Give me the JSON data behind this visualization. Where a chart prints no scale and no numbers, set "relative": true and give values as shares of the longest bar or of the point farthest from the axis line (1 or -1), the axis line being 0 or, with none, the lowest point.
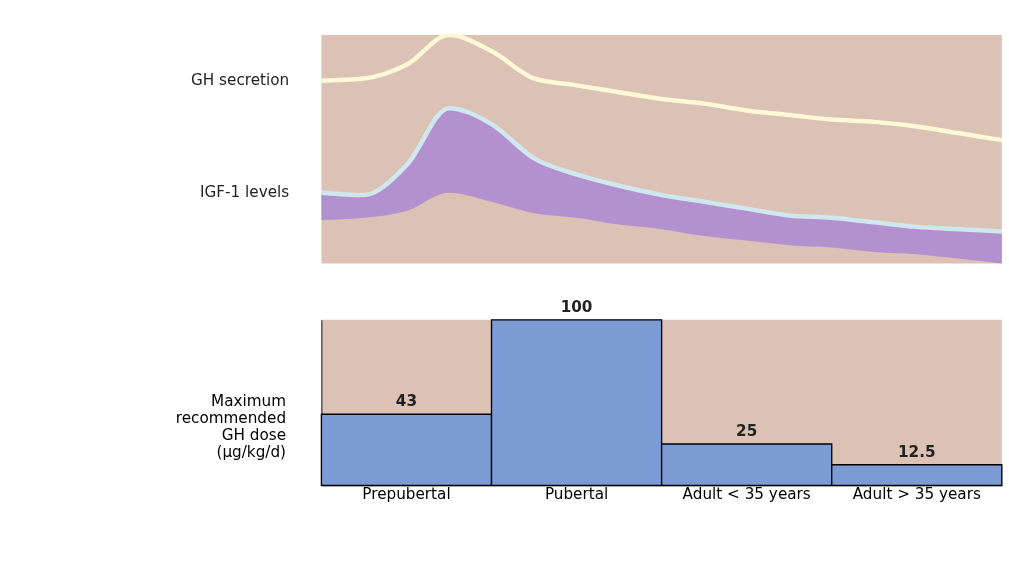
{
  "chart_data": [
    {
      "type": "line",
      "relative": true,
      "categories": [
        null,
        null,
        null,
        null,
        null,
        null,
        null,
        null,
        null,
        null,
        null,
        null,
        null,
        null,
        null,
        null,
        null
      ],
      "series": [
        {
          "name": "GH secretion",
          "type": "line",
          "color": "#fdf8d6",
          "values": [
            0.8,
            0.81,
            0.87,
            1.0,
            0.93,
            0.81,
            0.78,
            0.75,
            0.72,
            0.7,
            0.67,
            0.65,
            0.63,
            0.62,
            0.6,
            0.57,
            0.54
          ]
        },
        {
          "name": "IGF-1 levels",
          "type": "line",
          "color": "#cfe8ef",
          "values": [
            0.31,
            0.3,
            0.43,
            0.68,
            0.61,
            0.46,
            0.39,
            0.34,
            0.3,
            0.27,
            0.24,
            0.21,
            0.2,
            0.18,
            0.16,
            0.15,
            0.14
          ],
          "upper": [
            0.31,
            0.3,
            0.43,
            0.68,
            0.61,
            0.46,
            0.39,
            0.34,
            0.3,
            0.27,
            0.24,
            0.21,
            0.2,
            0.18,
            0.16,
            0.15,
            0.14
          ],
          "lower": [
            0.19,
            0.2,
            0.23,
            0.31,
            0.27,
            0.22,
            0.2,
            0.17,
            0.15,
            0.12,
            0.1,
            0.08,
            0.07,
            0.05,
            0.04,
            0.02,
            0
          ]
        }
      ],
      "legend": false,
      "tick_labels": false,
      "grid": false
    },
    {
      "type": "bar",
      "categories": [
        "Prepubertal",
        "Pubertal",
        "Adult < 35 years",
        "Adult > 35 years"
      ],
      "values": [
        43,
        100,
        25,
        12.5
      ],
      "color": "#7b9bd4",
      "data_labels": true,
      "ylabel": "Maximum\nrecommended\nGH dose\n(μg/kg/d)",
      "tick_labels": "x",
      "grid": false,
      "legend": false
    }
  ]
}
